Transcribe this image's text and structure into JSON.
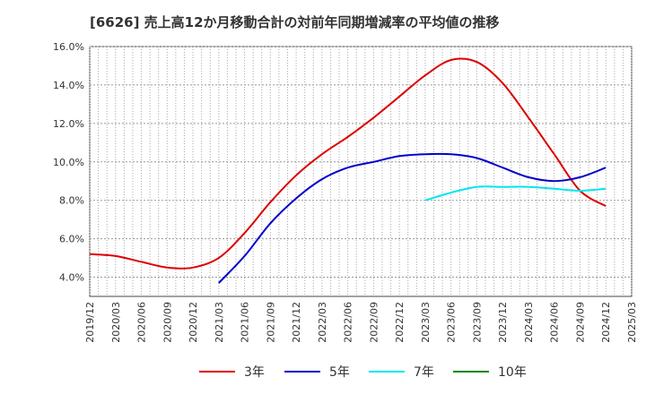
{
  "title": "[6626]  売上高12か月移動合計の対前年同期増減率の平均値の推移",
  "chart_data": {
    "type": "line",
    "title": "[6626]  売上高12か月移動合計の対前年同期増減率の平均値の推移",
    "xlabel": "",
    "ylabel": "",
    "ylim": [
      3.0,
      16.0
    ],
    "y_ticks": [
      "4.0%",
      "6.0%",
      "8.0%",
      "10.0%",
      "12.0%",
      "14.0%",
      "16.0%"
    ],
    "x_ticks": [
      "2019/12",
      "2020/03",
      "2020/06",
      "2020/09",
      "2020/12",
      "2021/03",
      "2021/06",
      "2021/09",
      "2021/12",
      "2022/03",
      "2022/06",
      "2022/09",
      "2022/12",
      "2023/03",
      "2023/06",
      "2023/09",
      "2023/12",
      "2024/03",
      "2024/06",
      "2024/09",
      "2024/12",
      "2025/03"
    ],
    "grid": true,
    "legend_position": "bottom",
    "series": [
      {
        "name": "3年",
        "color": "#dd0000",
        "points": [
          [
            "2019/12",
            5.2
          ],
          [
            "2020/03",
            5.1
          ],
          [
            "2020/06",
            4.8
          ],
          [
            "2020/09",
            4.5
          ],
          [
            "2020/12",
            4.5
          ],
          [
            "2021/03",
            5.0
          ],
          [
            "2021/06",
            6.3
          ],
          [
            "2021/09",
            7.9
          ],
          [
            "2021/12",
            9.3
          ],
          [
            "2022/03",
            10.4
          ],
          [
            "2022/06",
            11.3
          ],
          [
            "2022/09",
            12.3
          ],
          [
            "2022/12",
            13.4
          ],
          [
            "2023/03",
            14.5
          ],
          [
            "2023/06",
            15.3
          ],
          [
            "2023/09",
            15.2
          ],
          [
            "2023/12",
            14.1
          ],
          [
            "2024/03",
            12.3
          ],
          [
            "2024/06",
            10.4
          ],
          [
            "2024/09",
            8.5
          ],
          [
            "2024/12",
            7.7
          ]
        ]
      },
      {
        "name": "5年",
        "color": "#0000cc",
        "points": [
          [
            "2021/03",
            3.7
          ],
          [
            "2021/06",
            5.1
          ],
          [
            "2021/09",
            6.8
          ],
          [
            "2021/12",
            8.1
          ],
          [
            "2022/03",
            9.1
          ],
          [
            "2022/06",
            9.7
          ],
          [
            "2022/09",
            10.0
          ],
          [
            "2022/12",
            10.3
          ],
          [
            "2023/03",
            10.4
          ],
          [
            "2023/06",
            10.4
          ],
          [
            "2023/09",
            10.2
          ],
          [
            "2023/12",
            9.7
          ],
          [
            "2024/03",
            9.2
          ],
          [
            "2024/06",
            9.0
          ],
          [
            "2024/09",
            9.2
          ],
          [
            "2024/12",
            9.7
          ]
        ]
      },
      {
        "name": "7年",
        "color": "#00e5ee",
        "points": [
          [
            "2023/03",
            8.0
          ],
          [
            "2023/06",
            8.4
          ],
          [
            "2023/09",
            8.7
          ],
          [
            "2023/12",
            8.7
          ],
          [
            "2024/03",
            8.7
          ],
          [
            "2024/06",
            8.6
          ],
          [
            "2024/09",
            8.5
          ],
          [
            "2024/12",
            8.6
          ]
        ]
      },
      {
        "name": "10年",
        "color": "#008800",
        "points": []
      }
    ]
  }
}
